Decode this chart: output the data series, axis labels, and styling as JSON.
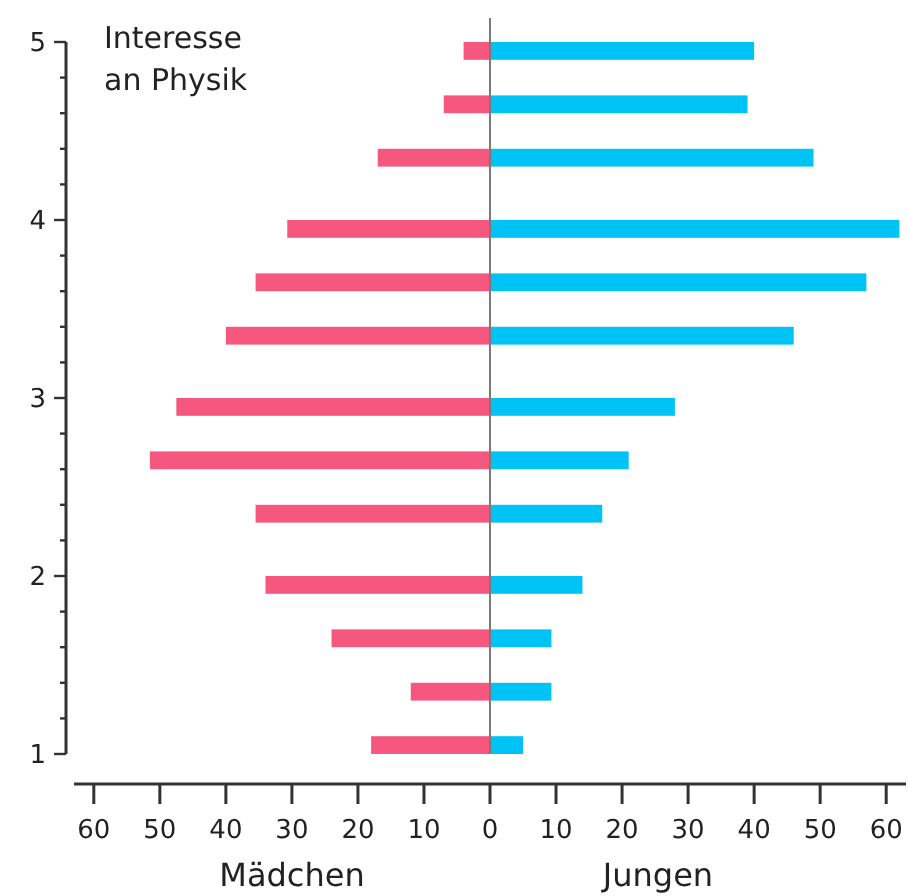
{
  "chart_data": {
    "type": "bar",
    "orientation": "horizontal",
    "stacked": true,
    "title": "Interesse an Physik",
    "annotations": [
      "Mädchen",
      "Jungen"
    ],
    "x": [
      1.05,
      1.35,
      1.65,
      1.95,
      2.35,
      2.65,
      2.95,
      3.35,
      3.65,
      3.95,
      4.35,
      4.65,
      4.95
    ],
    "series": [
      {
        "color": "#f5577f",
        "values": [
          -18,
          -12,
          -24,
          -34,
          -35.5,
          -51.5,
          -47.5,
          -40,
          -35.5,
          -30.7,
          -17,
          -7,
          -4
        ]
      },
      {
        "color": "#00c3f5",
        "values": [
          5,
          9.3,
          9.3,
          14,
          17,
          21,
          28,
          46,
          57,
          62,
          49,
          39,
          40
        ]
      }
    ],
    "xlim": [
      -63,
      63
    ],
    "xticks": [
      {
        "value": -60,
        "label": "60"
      },
      {
        "value": -50,
        "label": "50"
      },
      {
        "value": -40,
        "label": "40"
      },
      {
        "value": -30,
        "label": "30"
      },
      {
        "value": -20,
        "label": "20"
      },
      {
        "value": -10,
        "label": "10"
      },
      0,
      10,
      20,
      30,
      40,
      50,
      60
    ],
    "ylim": [
      1,
      5
    ],
    "yticks": [
      1,
      {
        "value": 1.2,
        "label": null
      },
      {
        "value": 1.4,
        "label": null
      },
      {
        "value": 1.6,
        "label": null
      },
      {
        "value": 1.8,
        "label": null
      },
      2,
      {
        "value": 2.2,
        "label": null
      },
      {
        "value": 2.4,
        "label": null
      },
      {
        "value": 2.6,
        "label": null
      },
      {
        "value": 2.8,
        "label": null
      },
      3,
      {
        "value": 3.2,
        "label": null
      },
      {
        "value": 3.4,
        "label": null
      },
      {
        "value": 3.6,
        "label": null
      },
      {
        "value": 3.8,
        "label": null
      },
      4,
      {
        "value": 4.2,
        "label": null
      },
      {
        "value": 4.4,
        "label": null
      },
      {
        "value": 4.6,
        "label": null
      },
      {
        "value": 4.8,
        "label": null
      },
      5
    ]
  }
}
